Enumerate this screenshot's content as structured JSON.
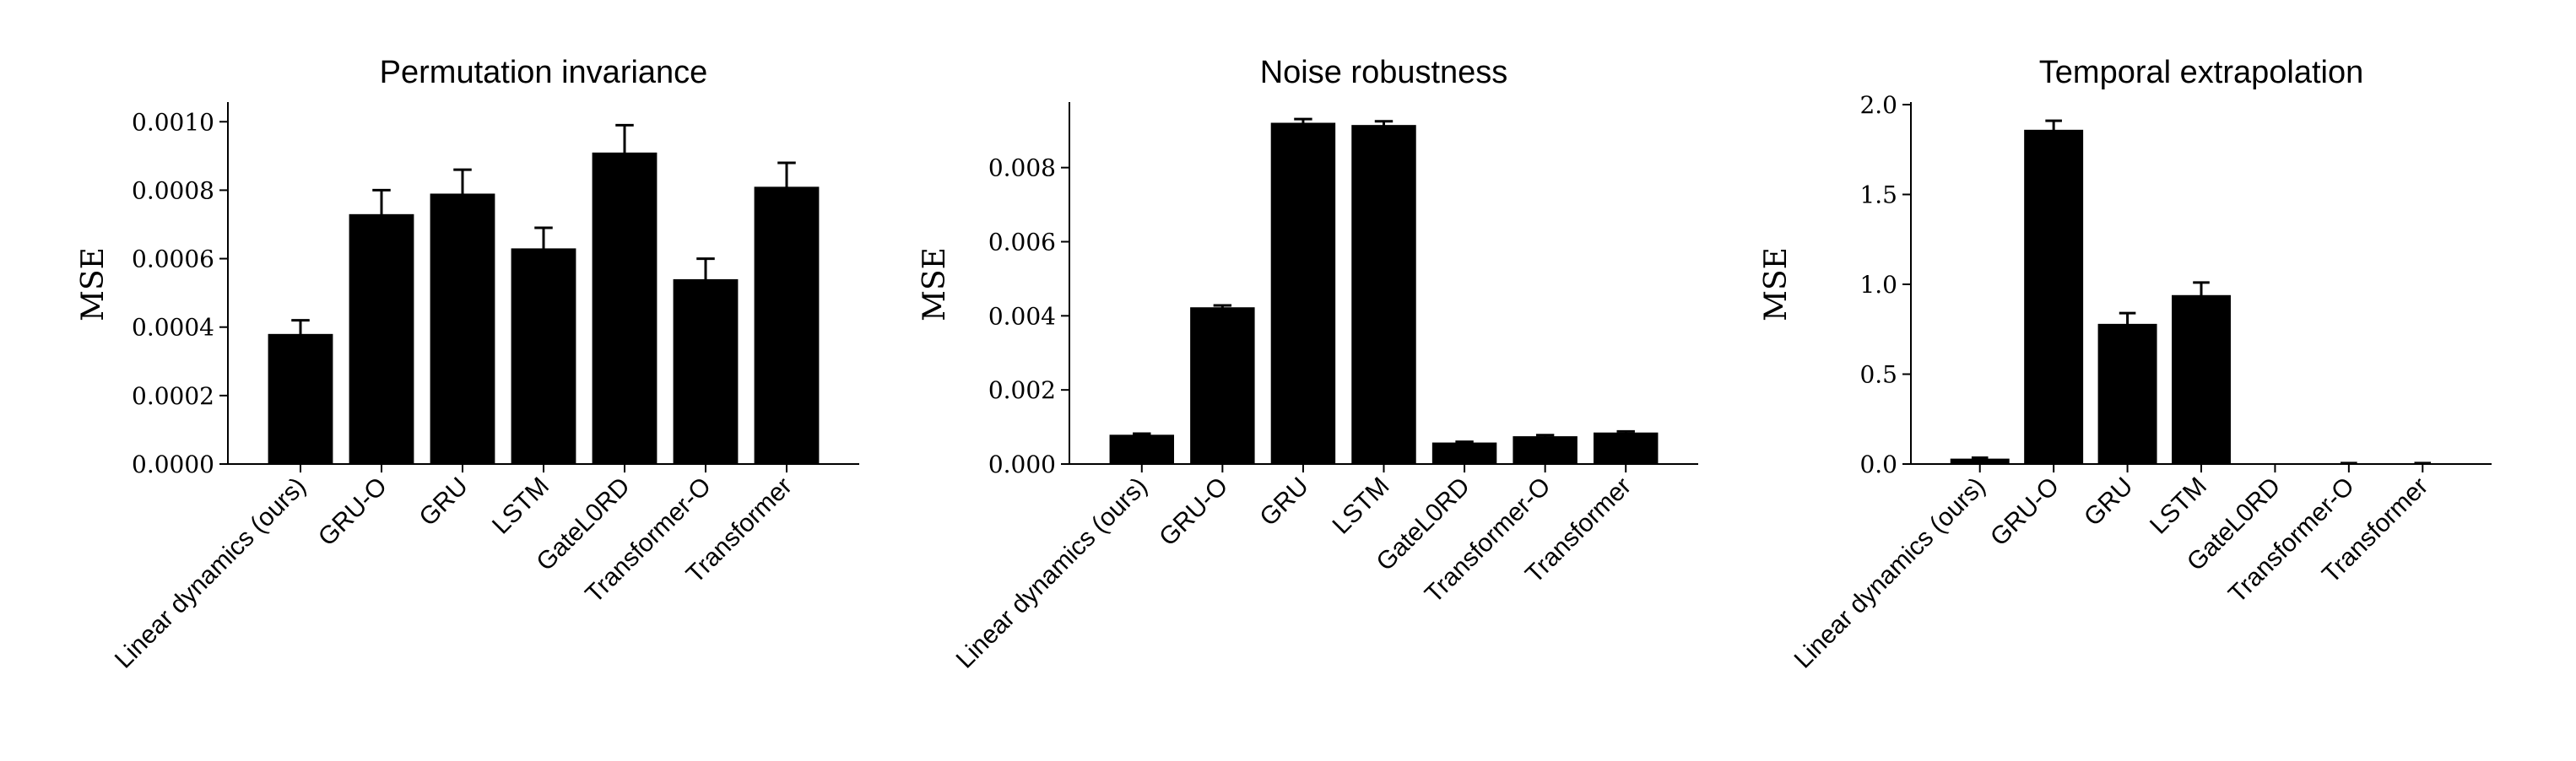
{
  "chart_data": [
    {
      "type": "bar",
      "title": "Permutation invariance",
      "ylabel": "MSE",
      "xlabel": "",
      "ylim": [
        0,
        0.00105
      ],
      "yticks": [
        0,
        0.0002,
        0.0004,
        0.0006,
        0.0008,
        0.001
      ],
      "ytick_labels": [
        "0.0000",
        "0.0002",
        "0.0004",
        "0.0006",
        "0.0008",
        "0.0010"
      ],
      "categories": [
        "Linear dynamics (ours)",
        "GRU-O",
        "GRU",
        "LSTM",
        "GateL0RD",
        "Transformer-O",
        "Transformer"
      ],
      "values": [
        0.00038,
        0.00073,
        0.00079,
        0.00063,
        0.00091,
        0.00054,
        0.00081
      ],
      "errors": [
        4e-05,
        7e-05,
        7e-05,
        6e-05,
        8e-05,
        6e-05,
        7e-05
      ],
      "grid": false,
      "color": "#000000"
    },
    {
      "type": "bar",
      "title": "Noise robustness",
      "ylabel": "MSE",
      "xlabel": "",
      "ylim": [
        0,
        0.0097
      ],
      "yticks": [
        0,
        0.002,
        0.004,
        0.006,
        0.008
      ],
      "ytick_labels": [
        "0.000",
        "0.002",
        "0.004",
        "0.006",
        "0.008"
      ],
      "categories": [
        "Linear dynamics (ours)",
        "GRU-O",
        "GRU",
        "LSTM",
        "GateL0RD",
        "Transformer-O",
        "Transformer"
      ],
      "values": [
        0.00079,
        0.00423,
        0.00921,
        0.00915,
        0.00058,
        0.00075,
        0.00085
      ],
      "errors": [
        3e-05,
        5e-05,
        0.0001,
        0.0001,
        2e-05,
        3e-05,
        3e-05
      ],
      "grid": false,
      "color": "#000000"
    },
    {
      "type": "bar",
      "title": "Temporal extrapolation",
      "ylabel": "MSE",
      "xlabel": "",
      "ylim": [
        0,
        2.0
      ],
      "yticks": [
        0,
        0.5,
        1.0,
        1.5,
        2.0
      ],
      "ytick_labels": [
        "0.0",
        "0.5",
        "1.0",
        "1.5",
        "2.0"
      ],
      "categories": [
        "Linear dynamics (ours)",
        "GRU-O",
        "GRU",
        "LSTM",
        "GateL0RD",
        "Transformer-O",
        "Transformer"
      ],
      "values": [
        0.03,
        1.86,
        0.78,
        0.94,
        0.0,
        0.003,
        0.003
      ],
      "errors": [
        0.005,
        0.05,
        0.06,
        0.07,
        0.0,
        0.002,
        0.002
      ],
      "grid": false,
      "color": "#000000"
    }
  ]
}
